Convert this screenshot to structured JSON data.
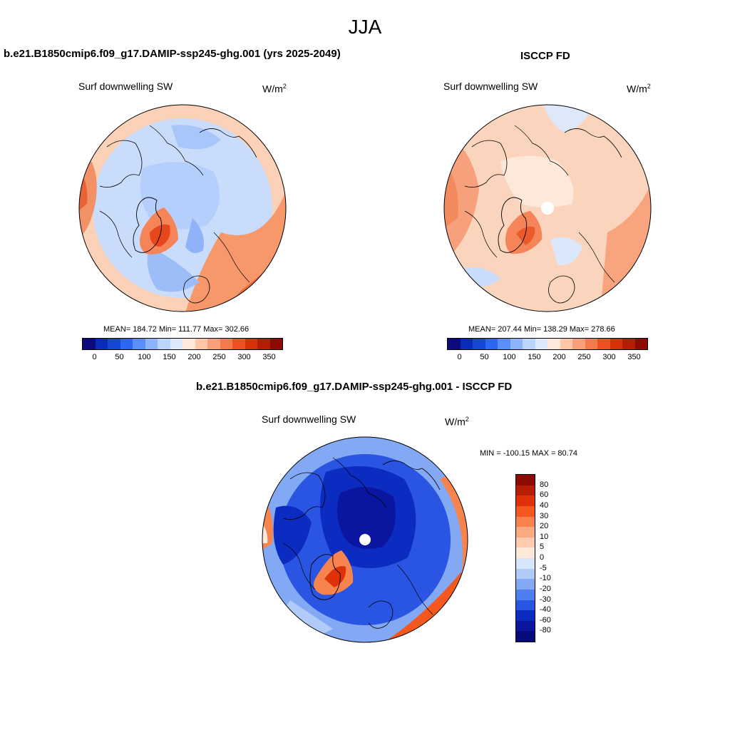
{
  "season": "JJA",
  "panels": {
    "model": {
      "case_title": "b.e21.B1850cmip6.f09_g17.DAMIP-ssp245-ghg.001 (yrs 2025-2049)",
      "var_label": "Surf downwelling SW",
      "units_base": "W/m",
      "units_exp": "2",
      "stats_text": "MEAN= 184.72  Min= 111.77  Max= 302.66",
      "mean": 184.72,
      "min": 111.77,
      "max": 302.66
    },
    "obs": {
      "case_title": "ISCCP FD",
      "var_label": "Surf downwelling SW",
      "units_base": "W/m",
      "units_exp": "2",
      "stats_text": "MEAN= 207.44  Min= 138.29  Max= 278.66",
      "mean": 207.44,
      "min": 138.29,
      "max": 278.66
    },
    "diff": {
      "case_title": "b.e21.B1850cmip6.f09_g17.DAMIP-ssp245-ghg.001 - ISCCP FD",
      "var_label": "Surf downwelling SW",
      "units_base": "W/m",
      "units_exp": "2",
      "stats_text": "MIN = -100.15 MAX =  80.74",
      "min": -100.15,
      "max": 80.74
    }
  },
  "colorbars": {
    "abs_colors": [
      "#0d0a80",
      "#0a2bbd",
      "#1646d6",
      "#2d66f2",
      "#5a8ef8",
      "#8db4fb",
      "#bcd5fd",
      "#ddeafc",
      "#fde8da",
      "#fcc7a8",
      "#f9a07a",
      "#f5794f",
      "#ef4f22",
      "#d8300a",
      "#b71c06",
      "#8d0a02"
    ],
    "abs_ticks": [
      "0",
      "50",
      "100",
      "150",
      "200",
      "250",
      "300",
      "350"
    ],
    "diff_colors": [
      "#8d0a02",
      "#b71c06",
      "#e03208",
      "#f5581f",
      "#f7844f",
      "#faa982",
      "#fccbb0",
      "#fde8da",
      "#d8e6fb",
      "#b0cbf8",
      "#83a9f5",
      "#4f7ef0",
      "#2a55e2",
      "#0c2bc0",
      "#0a16a0",
      "#070a7a"
    ],
    "diff_ticks": [
      "80",
      "60",
      "40",
      "30",
      "20",
      "10",
      "5",
      "0",
      "-5",
      "-10",
      "-20",
      "-30",
      "-40",
      "-60",
      "-80"
    ]
  }
}
